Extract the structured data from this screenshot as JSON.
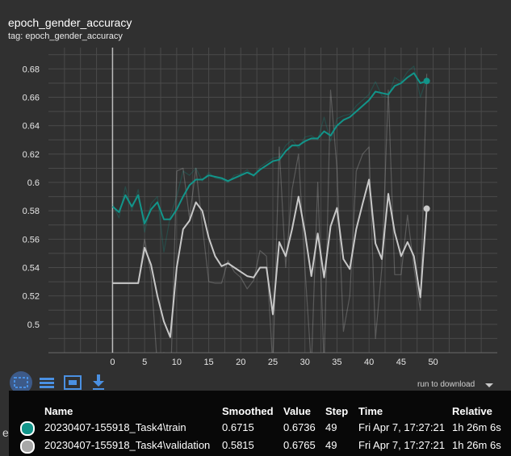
{
  "card": {
    "title": "epoch_gender_accuracy",
    "tag": "tag: epoch_gender_accuracy"
  },
  "chart_data": {
    "type": "line",
    "xlim": [
      -10,
      60
    ],
    "ylim": [
      0.48,
      0.695
    ],
    "x_ticks": [
      0,
      5,
      10,
      15,
      20,
      25,
      30,
      35,
      40,
      45,
      50
    ],
    "y_ticks": [
      0.5,
      0.52,
      0.54,
      0.56,
      0.58,
      0.6,
      0.62,
      0.64,
      0.66,
      0.68
    ],
    "grid": true,
    "series": [
      {
        "name": "20230407-155918_Task4\\train",
        "color": "#12958a",
        "smoothed": [
          0.583,
          0.579,
          0.591,
          0.583,
          0.591,
          0.571,
          0.581,
          0.586,
          0.574,
          0.574,
          0.581,
          0.59,
          0.598,
          0.602,
          0.602,
          0.605,
          0.604,
          0.603,
          0.601,
          0.603,
          0.605,
          0.607,
          0.605,
          0.609,
          0.612,
          0.615,
          0.616,
          0.622,
          0.626,
          0.626,
          0.629,
          0.631,
          0.631,
          0.636,
          0.633,
          0.64,
          0.644,
          0.646,
          0.65,
          0.654,
          0.658,
          0.664,
          0.663,
          0.662,
          0.668,
          0.67,
          0.674,
          0.677,
          0.67,
          0.6715
        ],
        "raw": [
          0.585,
          0.575,
          0.597,
          0.58,
          0.595,
          0.565,
          0.585,
          0.59,
          0.551,
          0.576,
          0.59,
          0.608,
          0.605,
          0.61,
          0.601,
          0.607,
          0.603,
          0.602,
          0.6,
          0.605,
          0.606,
          0.609,
          0.604,
          0.611,
          0.614,
          0.617,
          0.618,
          0.626,
          0.63,
          0.624,
          0.632,
          0.633,
          0.63,
          0.646,
          0.629,
          0.645,
          0.647,
          0.648,
          0.654,
          0.658,
          0.662,
          0.671,
          0.661,
          0.66,
          0.674,
          0.671,
          0.678,
          0.682,
          0.66,
          0.6736
        ]
      },
      {
        "name": "20230407-155918_Task4\\validation",
        "color": "#c8c8c8",
        "smoothed": [
          0.529,
          0.529,
          0.529,
          0.529,
          0.529,
          0.554,
          0.542,
          0.52,
          0.502,
          0.491,
          0.54,
          0.567,
          0.573,
          0.586,
          0.58,
          0.561,
          0.548,
          0.541,
          0.543,
          0.54,
          0.537,
          0.534,
          0.533,
          0.54,
          0.54,
          0.507,
          0.558,
          0.548,
          0.567,
          0.59,
          0.565,
          0.534,
          0.564,
          0.533,
          0.569,
          0.582,
          0.546,
          0.539,
          0.567,
          0.585,
          0.602,
          0.557,
          0.546,
          0.592,
          0.565,
          0.548,
          0.558,
          0.548,
          0.519,
          0.5815
        ],
        "raw": [
          0.529,
          0.529,
          0.529,
          0.529,
          0.529,
          0.56,
          0.535,
          0.47,
          0.48,
          0.43,
          0.608,
          0.61,
          0.575,
          0.61,
          0.57,
          0.53,
          0.529,
          0.529,
          0.545,
          0.537,
          0.533,
          0.525,
          0.531,
          0.552,
          0.548,
          0.47,
          0.625,
          0.54,
          0.595,
          0.62,
          0.54,
          0.47,
          0.6,
          0.47,
          0.665,
          0.61,
          0.495,
          0.52,
          0.608,
          0.62,
          0.625,
          0.49,
          0.54,
          0.665,
          0.535,
          0.535,
          0.577,
          0.54,
          0.51,
          0.6765
        ]
      }
    ]
  },
  "toolbar": {
    "icons": [
      "fit-domain-icon",
      "toggle-log-scale-icon",
      "expand-chart-icon",
      "download-icon"
    ],
    "download_label": "run to download"
  },
  "next_chart_title": "epoch_gender_loss",
  "tooltip": {
    "headers": {
      "name": "Name",
      "smoothed": "Smoothed",
      "value": "Value",
      "step": "Step",
      "time": "Time",
      "relative": "Relative"
    },
    "rows": [
      {
        "color": "#12958a",
        "name": "20230407-155918_Task4\\train",
        "smoothed": "0.6715",
        "value": "0.6736",
        "step": "49",
        "time": "Fri Apr 7, 17:27:21",
        "relative": "1h 26m 6s"
      },
      {
        "color": "#a8a8a8",
        "name": "20230407-155918_Task4\\validation",
        "smoothed": "0.5815",
        "value": "0.6765",
        "step": "49",
        "time": "Fri Apr 7, 17:27:21",
        "relative": "1h 26m 6s"
      }
    ]
  }
}
